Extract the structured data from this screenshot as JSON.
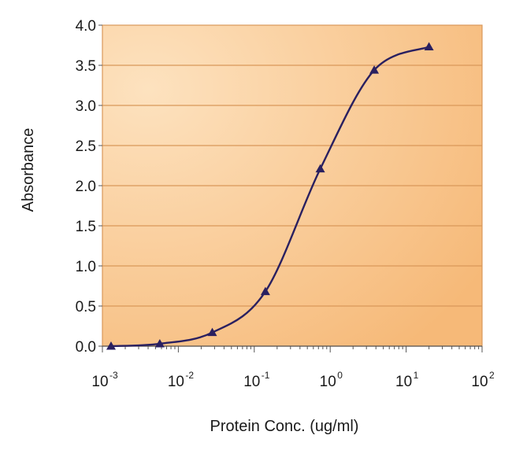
{
  "chart_data": {
    "type": "line",
    "title": "",
    "xlabel": "Protein Conc. (ug/ml)",
    "ylabel": "Absorbance",
    "x_scale": "log",
    "xlim": [
      0.001,
      100
    ],
    "ylim": [
      0,
      4.0
    ],
    "x_ticks": [
      {
        "value": 0.001,
        "base": "10",
        "exp": "-3"
      },
      {
        "value": 0.01,
        "base": "10",
        "exp": "-2"
      },
      {
        "value": 0.1,
        "base": "10",
        "exp": "-1"
      },
      {
        "value": 1,
        "base": "10",
        "exp": "0"
      },
      {
        "value": 10,
        "base": "10",
        "exp": "1"
      },
      {
        "value": 100,
        "base": "10",
        "exp": "2"
      }
    ],
    "y_ticks": [
      "0.0",
      "0.5",
      "1.0",
      "1.5",
      "2.0",
      "2.5",
      "3.0",
      "3.5",
      "4.0"
    ],
    "grid": "horizontal",
    "legend": "none",
    "series": [
      {
        "x": [
          0.0013,
          0.0057,
          0.028,
          0.14,
          0.74,
          3.8,
          20
        ],
        "y": [
          0.0,
          0.03,
          0.17,
          0.68,
          2.21,
          3.44,
          3.73
        ]
      }
    ],
    "colors": {
      "line": "#2a2060",
      "marker": "#2a2060",
      "plot_bg_light": "#fde2bf",
      "plot_bg_dark": "#f6b978",
      "gridline": "#d9985a",
      "frame": "#d9985a",
      "axis": "#555555"
    }
  }
}
